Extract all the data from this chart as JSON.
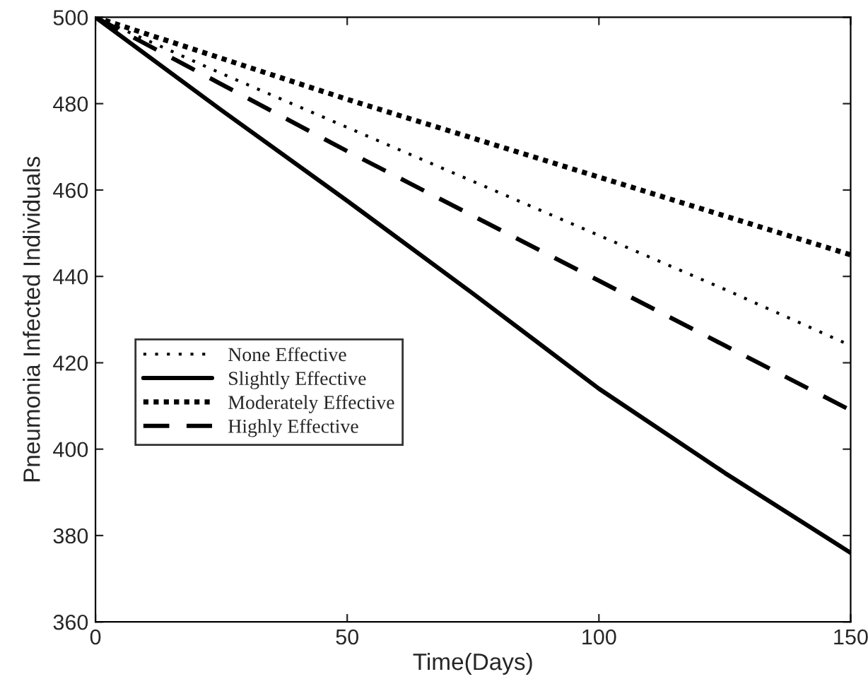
{
  "chart_data": {
    "type": "line",
    "xlabel": "Time(Days)",
    "ylabel": "Pneumonia Infected Individuals",
    "x": [
      0,
      25,
      50,
      75,
      100,
      125,
      150
    ],
    "series": [
      {
        "name": "None Effective",
        "color": "#000000",
        "line_style": "dotted",
        "values": [
          500,
          487,
          474.5,
          462,
          449.5,
          437,
          424
        ]
      },
      {
        "name": "Slightly Effective",
        "color": "#000000",
        "line_style": "solid",
        "values": [
          500,
          478.5,
          457.5,
          436,
          414,
          394.5,
          376
        ]
      },
      {
        "name": "Moderately Effective",
        "color": "#000000",
        "line_style": "dotted",
        "values": [
          500,
          490.5,
          481,
          472,
          463,
          454,
          445
        ]
      },
      {
        "name": "Highly Effective",
        "color": "#000000",
        "line_style": "dashed",
        "values": [
          500,
          484.5,
          469,
          454,
          439,
          424,
          409
        ]
      }
    ],
    "xlim": [
      0,
      150
    ],
    "xticks": [
      0,
      50,
      100,
      150
    ],
    "ylim": [
      360,
      500
    ],
    "yticks": [
      360,
      380,
      400,
      420,
      440,
      460,
      480,
      500
    ],
    "grid": false,
    "legend": "left",
    "marker": "none"
  }
}
